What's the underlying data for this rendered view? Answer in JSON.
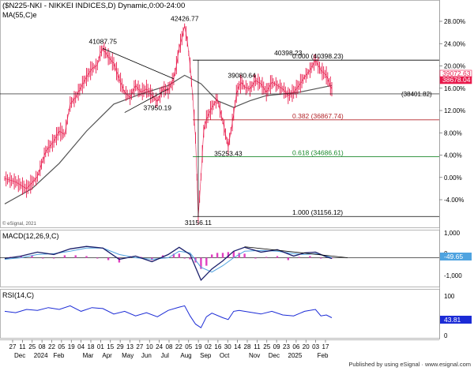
{
  "header": {
    "title": "($N225-NKI - NIKKEI INDICES,D) Dynamic,0:00-24:00",
    "ma_label": "MA(55,C)e",
    "copyright": "© eSignal, 2021"
  },
  "footer": {
    "credit": "Published by using eSignal · www.esignal.com"
  },
  "colors": {
    "price": "#e8194b",
    "ma": "#555555",
    "macd": "#1a1f6b",
    "signal": "#4fa3e0",
    "hist": "#e040c0",
    "rsi": "#1b2bd6",
    "fib_top": "#000000",
    "fib_382": "#b3262b",
    "fib_618": "#1d8a2e",
    "fib_100": "#000000"
  },
  "chart_data": [
    {
      "type": "line",
      "title": "($N225-NKI - NIKKEI INDICES,D) Dynamic,0:00-24:00",
      "ylabel": "",
      "y_axis_ticks": [
        "28.00%",
        "24.00%",
        "20.00%",
        "16.00%",
        "12.00%",
        "8.00%",
        "4.00%",
        "0.00%",
        "-4.00%"
      ],
      "x_tick_labels": [
        "27",
        "11",
        "25",
        "08",
        "22",
        "05",
        "19",
        "04",
        "18",
        "01",
        "15",
        "29",
        "13",
        "27",
        "10",
        "24",
        "08",
        "22",
        "05",
        "19",
        "02",
        "16",
        "30",
        "14",
        "28",
        "11",
        "25",
        "09",
        "23",
        "06",
        "20",
        "03",
        "17"
      ],
      "x_month_labels": [
        "Dec",
        "2024",
        "Feb",
        "Mar",
        "Apr",
        "May",
        "Jun",
        "Jul",
        "Aug",
        "Sep",
        "Oct",
        "Nov",
        "Dec",
        "2025",
        "Feb"
      ],
      "series": [
        {
          "name": "",
          "points": [
            [
              0,
              33400
            ],
            [
              4,
              33200
            ],
            [
              8,
              32800
            ],
            [
              12,
              33500
            ],
            [
              15,
              35000
            ],
            [
              18,
              35600
            ],
            [
              20,
              36200
            ],
            [
              22,
              36000
            ],
            [
              24,
              37800
            ],
            [
              26,
              38200
            ],
            [
              28,
              38800
            ],
            [
              30,
              39400
            ],
            [
              32,
              39900
            ],
            [
              34,
              40100
            ],
            [
              35,
              40800
            ],
            [
              36,
              41087.75
            ],
            [
              38,
              40600
            ],
            [
              40,
              40200
            ],
            [
              42,
              39300
            ],
            [
              44,
              38500
            ],
            [
              46,
              38200
            ],
            [
              48,
              38900
            ],
            [
              50,
              38500
            ],
            [
              52,
              38700
            ],
            [
              54,
              38300
            ],
            [
              56,
              37950.19
            ],
            [
              58,
              38700
            ],
            [
              60,
              38600
            ],
            [
              62,
              39300
            ],
            [
              63,
              40100
            ],
            [
              64,
              41100
            ],
            [
              65,
              41700
            ],
            [
              66,
              42426.77
            ],
            [
              67,
              41500
            ],
            [
              68,
              40100
            ],
            [
              69,
              38200
            ],
            [
              70,
              35800
            ],
            [
              71,
              31156.11
            ],
            [
              72,
              33500
            ],
            [
              73,
              36200
            ],
            [
              74,
              36900
            ],
            [
              76,
              37600
            ],
            [
              78,
              38100
            ],
            [
              80,
              36800
            ],
            [
              82,
              35253.43
            ],
            [
              84,
              37200
            ],
            [
              85,
              38400
            ],
            [
              86,
              38900
            ],
            [
              87,
              39080.64
            ],
            [
              88,
              38800
            ],
            [
              90,
              38700
            ],
            [
              92,
              39200
            ],
            [
              94,
              39000
            ],
            [
              96,
              38500
            ],
            [
              98,
              39100
            ],
            [
              100,
              38900
            ],
            [
              102,
              38700
            ],
            [
              104,
              38300
            ],
            [
              106,
              38500
            ],
            [
              108,
              38900
            ],
            [
              110,
              39400
            ],
            [
              112,
              39800
            ],
            [
              114,
              40398.23
            ],
            [
              116,
              39800
            ],
            [
              118,
              39500
            ],
            [
              119,
              39072.63
            ],
            [
              120,
              38678.04
            ]
          ]
        },
        {
          "name": "",
          "points": [
            [
              0,
              31900
            ],
            [
              10,
              32800
            ],
            [
              20,
              34300
            ],
            [
              30,
              36200
            ],
            [
              40,
              37800
            ],
            [
              50,
              38400
            ],
            [
              60,
              38900
            ],
            [
              66,
              39500
            ],
            [
              72,
              39000
            ],
            [
              78,
              38000
            ],
            [
              84,
              37600
            ],
            [
              90,
              38000
            ],
            [
              96,
              38300
            ],
            [
              102,
              38400
            ],
            [
              108,
              38500
            ],
            [
              114,
              38700
            ],
            [
              120,
              38900
            ]
          ]
        }
      ],
      "ylim": [
        30700,
        43300
      ],
      "price_labels": [
        {
          "x": 36,
          "y": 41087.75,
          "text": "41087.75"
        },
        {
          "x": 66,
          "y": 42426.77,
          "text": "42426.77"
        },
        {
          "x": 56,
          "y": 37950.19,
          "text": "37950.19"
        },
        {
          "x": 87,
          "y": 39080.64,
          "text": "39080.64"
        },
        {
          "x": 104,
          "y": 40398.23,
          "text": "40398.23"
        },
        {
          "x": 82,
          "y": 35253.43,
          "text": "35253.43"
        },
        {
          "x": 71,
          "y": 31156.11,
          "text": "31156.11"
        }
      ],
      "fib_levels": [
        {
          "level": 40398.23,
          "label": "0.000 (40398.23)"
        },
        {
          "level": 36867.74,
          "label": "0.382 (36867.74)"
        },
        {
          "level": 34686.61,
          "label": "0.618 (34686.61)"
        },
        {
          "level": 31156.12,
          "label": "1.000 (31156.12)"
        }
      ],
      "horizontal_line": {
        "level": 38401.82,
        "label": "(38401.82)"
      },
      "last_values": [
        "39072.63",
        "38678.04"
      ]
    },
    {
      "type": "line",
      "title": "MACD(12,26,9,C)",
      "y_axis_ticks": [
        "1,000",
        "0",
        "-1,000"
      ],
      "series": [
        {
          "name": "",
          "points": [
            [
              0,
              -50
            ],
            [
              6,
              100
            ],
            [
              12,
              350
            ],
            [
              18,
              200
            ],
            [
              24,
              550
            ],
            [
              30,
              700
            ],
            [
              36,
              600
            ],
            [
              42,
              -100
            ],
            [
              48,
              100
            ],
            [
              54,
              -250
            ],
            [
              60,
              200
            ],
            [
              64,
              650
            ],
            [
              68,
              200
            ],
            [
              70,
              -600
            ],
            [
              72,
              -1400
            ],
            [
              76,
              -700
            ],
            [
              80,
              -200
            ],
            [
              84,
              400
            ],
            [
              88,
              650
            ],
            [
              94,
              350
            ],
            [
              100,
              500
            ],
            [
              106,
              100
            ],
            [
              110,
              300
            ],
            [
              114,
              350
            ],
            [
              118,
              50
            ],
            [
              120,
              -50
            ]
          ]
        },
        {
          "name": "",
          "points": [
            [
              0,
              -100
            ],
            [
              6,
              0
            ],
            [
              12,
              200
            ],
            [
              18,
              250
            ],
            [
              24,
              400
            ],
            [
              30,
              600
            ],
            [
              36,
              600
            ],
            [
              42,
              200
            ],
            [
              48,
              0
            ],
            [
              54,
              -100
            ],
            [
              60,
              0
            ],
            [
              64,
              400
            ],
            [
              68,
              300
            ],
            [
              72,
              -600
            ],
            [
              76,
              -900
            ],
            [
              80,
              -500
            ],
            [
              84,
              0
            ],
            [
              88,
              400
            ],
            [
              94,
              450
            ],
            [
              100,
              400
            ],
            [
              106,
              250
            ],
            [
              110,
              200
            ],
            [
              114,
              250
            ],
            [
              118,
              100
            ],
            [
              120,
              0
            ]
          ]
        }
      ],
      "histogram": [
        [
          2,
          50
        ],
        [
          6,
          100
        ],
        [
          10,
          150
        ],
        [
          14,
          -50
        ],
        [
          18,
          -50
        ],
        [
          22,
          150
        ],
        [
          26,
          150
        ],
        [
          30,
          100
        ],
        [
          34,
          -50
        ],
        [
          38,
          -150
        ],
        [
          42,
          -300
        ],
        [
          46,
          100
        ],
        [
          50,
          50
        ],
        [
          54,
          -150
        ],
        [
          58,
          150
        ],
        [
          62,
          250
        ],
        [
          64,
          250
        ],
        [
          66,
          -50
        ],
        [
          68,
          -100
        ],
        [
          70,
          -300
        ],
        [
          72,
          -700
        ],
        [
          74,
          -500
        ],
        [
          76,
          200
        ],
        [
          78,
          300
        ],
        [
          80,
          300
        ],
        [
          82,
          350
        ],
        [
          84,
          400
        ],
        [
          86,
          300
        ],
        [
          88,
          250
        ],
        [
          92,
          -50
        ],
        [
          96,
          50
        ],
        [
          100,
          100
        ],
        [
          104,
          -150
        ],
        [
          108,
          50
        ],
        [
          112,
          100
        ],
        [
          116,
          -50
        ],
        [
          120,
          -50
        ]
      ],
      "ylim": [
        -1750,
        1500
      ],
      "last_value": "-49.65"
    },
    {
      "type": "line",
      "title": "RSI(14,C)",
      "y_axis_ticks": [
        "100",
        "0"
      ],
      "series": [
        {
          "name": "",
          "points": [
            [
              0,
              58
            ],
            [
              4,
              55
            ],
            [
              8,
              62
            ],
            [
              12,
              60
            ],
            [
              16,
              66
            ],
            [
              20,
              62
            ],
            [
              24,
              70
            ],
            [
              28,
              58
            ],
            [
              32,
              66
            ],
            [
              36,
              64
            ],
            [
              40,
              52
            ],
            [
              44,
              58
            ],
            [
              48,
              48
            ],
            [
              52,
              55
            ],
            [
              56,
              46
            ],
            [
              60,
              60
            ],
            [
              64,
              67
            ],
            [
              66,
              70
            ],
            [
              68,
              48
            ],
            [
              70,
              30
            ],
            [
              72,
              22
            ],
            [
              74,
              46
            ],
            [
              76,
              54
            ],
            [
              80,
              44
            ],
            [
              82,
              40
            ],
            [
              84,
              58
            ],
            [
              86,
              60
            ],
            [
              90,
              56
            ],
            [
              94,
              52
            ],
            [
              98,
              58
            ],
            [
              102,
              50
            ],
            [
              106,
              48
            ],
            [
              110,
              58
            ],
            [
              114,
              62
            ],
            [
              116,
              48
            ],
            [
              118,
              50
            ],
            [
              120,
              44
            ]
          ]
        }
      ],
      "ylim": [
        0,
        100
      ],
      "last_value": "43.81"
    }
  ]
}
